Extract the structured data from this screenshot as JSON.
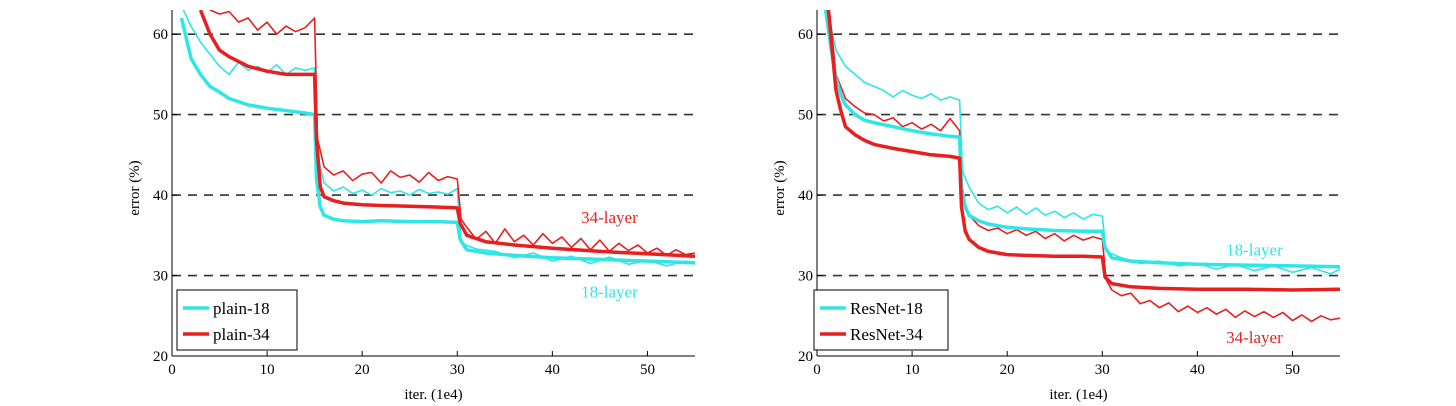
{
  "chart_data": [
    {
      "type": "line",
      "xlabel": "iter. (1e4)",
      "ylabel": "error (%)",
      "xlim": [
        0,
        55
      ],
      "ylim": [
        20,
        63
      ],
      "xticks": [
        0,
        10,
        20,
        30,
        40,
        50
      ],
      "yticks": [
        20,
        30,
        40,
        50,
        60
      ],
      "grid": "horizontal dashed at 30, 40, 50, 60",
      "legend": {
        "placement": "bottom-left",
        "entries": [
          {
            "label": "plain-18",
            "color": "#2ee6e6"
          },
          {
            "label": "plain-34",
            "color": "#e81f1f"
          }
        ]
      },
      "annotations": [
        {
          "text": "34-layer",
          "x": 46,
          "y": 36.5,
          "color": "#e81f1f"
        },
        {
          "text": "18-layer",
          "x": 46,
          "y": 27.3,
          "color": "#2ee6e6"
        }
      ],
      "series": [
        {
          "name": "plain-18",
          "kind": "validation (bold)",
          "color": "#2ee6e6",
          "x": [
            1,
            2,
            3,
            4,
            5,
            6,
            8,
            10,
            12,
            14,
            15,
            15.2,
            15.6,
            16,
            17,
            18,
            20,
            22,
            25,
            28,
            30,
            30.3,
            31,
            33,
            36,
            40,
            45,
            50,
            55
          ],
          "y": [
            62,
            57,
            55,
            53.5,
            52.8,
            52,
            51.2,
            50.8,
            50.5,
            50.2,
            50,
            42,
            38.5,
            37.5,
            37,
            36.8,
            36.7,
            36.8,
            36.7,
            36.7,
            36.6,
            34.5,
            33.2,
            32.8,
            32.5,
            32.2,
            32,
            31.8,
            31.6
          ]
        },
        {
          "name": "plain-34",
          "kind": "validation (bold)",
          "color": "#e81f1f",
          "x": [
            3,
            4,
            5,
            6,
            8,
            10,
            12,
            14,
            15,
            15.2,
            15.6,
            16,
            17,
            18,
            20,
            22,
            25,
            28,
            30,
            30.3,
            31,
            33,
            36,
            40,
            45,
            50,
            55
          ],
          "y": [
            63,
            60,
            58,
            57.2,
            56,
            55.4,
            55,
            55,
            55,
            47,
            41,
            39.8,
            39.3,
            39,
            38.8,
            38.7,
            38.6,
            38.5,
            38.4,
            36.5,
            35,
            34.2,
            33.8,
            33.4,
            33,
            32.7,
            32.4
          ]
        },
        {
          "name": "plain-18",
          "kind": "training (thin)",
          "color": "#2ee6e6",
          "x": [
            1.2,
            2,
            3,
            4,
            5,
            6,
            7,
            8,
            9,
            10,
            11,
            12,
            13,
            14,
            15,
            15.3,
            16,
            17,
            18,
            19,
            20,
            21,
            22,
            23,
            24,
            25,
            26,
            27,
            28,
            29,
            30,
            30.4,
            32,
            34,
            36,
            38,
            40,
            42,
            44,
            46,
            48,
            50,
            52,
            54,
            55
          ],
          "y": [
            63,
            61,
            59,
            57.5,
            56,
            55,
            56.5,
            55.5,
            56,
            55.2,
            56.2,
            55,
            55.8,
            55.5,
            55.8,
            45,
            41.5,
            40.5,
            41,
            40.2,
            40.6,
            40,
            40.8,
            40.3,
            40.5,
            40,
            40.7,
            40.2,
            40.4,
            40.1,
            40.8,
            34,
            33.3,
            33,
            32.2,
            32.8,
            31.8,
            32.4,
            31.5,
            32.3,
            31.4,
            31.9,
            31.2,
            31.8,
            31.4
          ]
        },
        {
          "name": "plain-34",
          "kind": "training (thin)",
          "color": "#e81f1f",
          "x": [
            4,
            5,
            6,
            7,
            8,
            9,
            10,
            11,
            12,
            13,
            14,
            15,
            15.3,
            16,
            17,
            18,
            19,
            20,
            21,
            22,
            23,
            24,
            25,
            26,
            27,
            28,
            29,
            30,
            30.4,
            31,
            32,
            33,
            34,
            35,
            36,
            37,
            38,
            39,
            40,
            41,
            42,
            43,
            44,
            45,
            46,
            47,
            48,
            49,
            50,
            51,
            52,
            53,
            54,
            55
          ],
          "y": [
            63,
            62.5,
            62.8,
            61.5,
            62,
            60.5,
            61.5,
            60,
            61,
            60.3,
            60.8,
            62,
            47,
            43.5,
            42.5,
            43,
            41.8,
            42.6,
            42.8,
            41.5,
            43,
            42.2,
            42.5,
            41.6,
            42.8,
            41.8,
            42.3,
            42,
            37,
            36,
            34.5,
            35.5,
            34,
            35.8,
            34.2,
            35,
            33.8,
            35.2,
            34,
            34.8,
            33.5,
            34.6,
            33.2,
            34.4,
            33,
            34,
            33.1,
            33.8,
            32.8,
            33.4,
            32.5,
            33.2,
            32.6,
            32.8
          ]
        }
      ]
    },
    {
      "type": "line",
      "xlabel": "iter. (1e4)",
      "ylabel": "error (%)",
      "xlim": [
        0,
        55
      ],
      "ylim": [
        20,
        63
      ],
      "xticks": [
        0,
        10,
        20,
        30,
        40,
        50
      ],
      "yticks": [
        20,
        30,
        40,
        50,
        60
      ],
      "grid": "horizontal dashed at 30, 40, 50, 60",
      "legend": {
        "placement": "bottom-left",
        "entries": [
          {
            "label": "ResNet-18",
            "color": "#2ee6e6"
          },
          {
            "label": "ResNet-34",
            "color": "#e81f1f"
          }
        ]
      },
      "annotations": [
        {
          "text": "18-layer",
          "x": 46,
          "y": 32.5,
          "color": "#2ee6e6"
        },
        {
          "text": "34-layer",
          "x": 46,
          "y": 21.6,
          "color": "#e81f1f"
        }
      ],
      "series": [
        {
          "name": "ResNet-18",
          "kind": "validation (bold)",
          "color": "#2ee6e6",
          "x": [
            0.9,
            1.5,
            2,
            2.5,
            3,
            4,
            5,
            6,
            8,
            10,
            12,
            14,
            15,
            15.2,
            15.6,
            16,
            17,
            18,
            20,
            22,
            25,
            28,
            30,
            30.3,
            31,
            33,
            36,
            40,
            45,
            50,
            55
          ],
          "y": [
            63,
            58,
            54.5,
            52.5,
            51.2,
            50,
            49.3,
            49,
            48.5,
            48,
            47.6,
            47.3,
            47.2,
            41,
            38.5,
            37.5,
            36.8,
            36.4,
            36,
            35.8,
            35.6,
            35.5,
            35.5,
            33.5,
            32.2,
            31.8,
            31.6,
            31.4,
            31.3,
            31.2,
            31.1
          ]
        },
        {
          "name": "ResNet-34",
          "kind": "validation (bold)",
          "color": "#e81f1f",
          "x": [
            1.2,
            2,
            2.5,
            3,
            4,
            5,
            6,
            8,
            10,
            12,
            14,
            15,
            15.2,
            15.6,
            16,
            17,
            18,
            20,
            22,
            25,
            28,
            30,
            30.3,
            31,
            33,
            36,
            40,
            45,
            50,
            55
          ],
          "y": [
            63,
            53,
            50.5,
            48.5,
            47.5,
            46.8,
            46.3,
            45.8,
            45.4,
            45,
            44.8,
            44.6,
            38.5,
            35.5,
            34.5,
            33.5,
            33,
            32.6,
            32.5,
            32.4,
            32.4,
            32.3,
            29.8,
            29,
            28.6,
            28.4,
            28.3,
            28.3,
            28.2,
            28.3
          ]
        },
        {
          "name": "ResNet-18",
          "kind": "training (thin)",
          "color": "#2ee6e6",
          "x": [
            1.1,
            2,
            3,
            4,
            5,
            6,
            7,
            8,
            9,
            10,
            11,
            12,
            13,
            14,
            15,
            15.3,
            16,
            17,
            18,
            19,
            20,
            21,
            22,
            23,
            24,
            25,
            26,
            27,
            28,
            29,
            30,
            30.4,
            32,
            34,
            36,
            38,
            40,
            42,
            44,
            46,
            48,
            50,
            52,
            54,
            55
          ],
          "y": [
            63,
            58,
            56,
            55,
            54,
            53.5,
            53,
            52.2,
            53,
            52.4,
            52,
            52.6,
            51.8,
            52.2,
            51.8,
            43,
            41,
            39,
            38.2,
            38.6,
            37.8,
            38.5,
            37.6,
            38.4,
            37.5,
            38,
            37.2,
            37.8,
            37,
            37.6,
            37.4,
            33,
            32.2,
            31.5,
            31.8,
            31.2,
            31.5,
            30.8,
            31.4,
            30.6,
            31.2,
            30.4,
            31,
            30.2,
            30.8
          ]
        },
        {
          "name": "ResNet-34",
          "kind": "training (thin)",
          "color": "#e81f1f",
          "x": [
            1.3,
            2,
            3,
            4,
            5,
            6,
            7,
            8,
            9,
            10,
            11,
            12,
            13,
            14,
            15,
            15.3,
            16,
            17,
            18,
            19,
            20,
            21,
            22,
            23,
            24,
            25,
            26,
            27,
            28,
            29,
            30,
            30.4,
            31,
            32,
            33,
            34,
            35,
            36,
            37,
            38,
            39,
            40,
            41,
            42,
            43,
            44,
            45,
            46,
            47,
            48,
            49,
            50,
            51,
            52,
            53,
            54,
            55
          ],
          "y": [
            63,
            55,
            52,
            51,
            50.2,
            50,
            49.2,
            49.6,
            48.5,
            49,
            48.2,
            48.8,
            48,
            49.5,
            48,
            40,
            37.5,
            36.2,
            35.6,
            35.9,
            35.2,
            35.7,
            35,
            35.5,
            34.6,
            35.2,
            34.3,
            35,
            34.4,
            34.8,
            34.5,
            29.5,
            28.2,
            27.5,
            27.8,
            26.5,
            26.9,
            26,
            26.6,
            25.5,
            26.2,
            25.4,
            26,
            25.2,
            25.8,
            24.8,
            25.6,
            24.9,
            25.5,
            24.8,
            25.4,
            24.4,
            25.1,
            24.3,
            25,
            24.5,
            24.7
          ]
        }
      ]
    }
  ]
}
